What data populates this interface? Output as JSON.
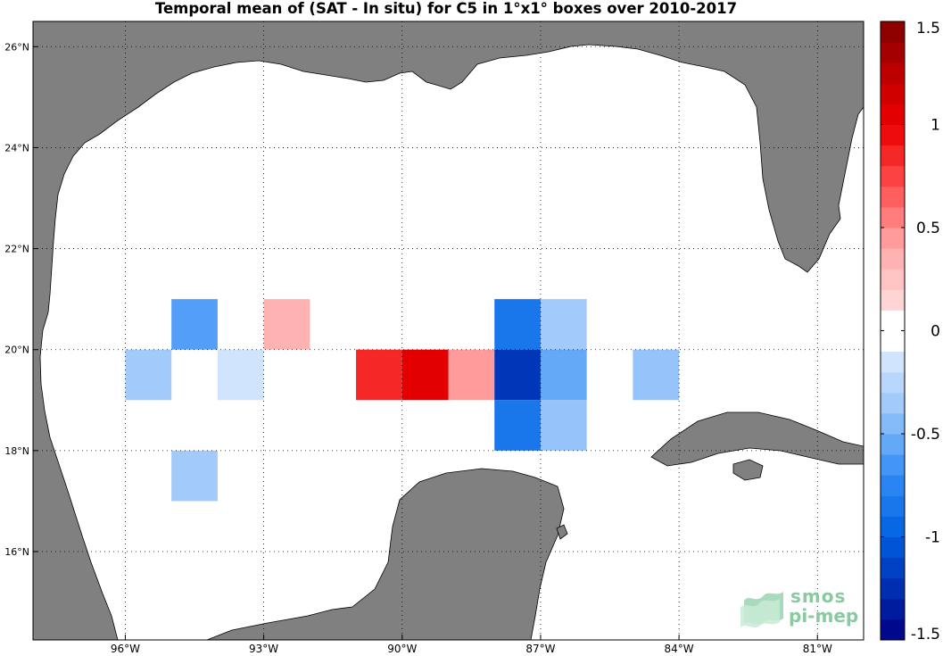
{
  "title": "Temporal mean of (SAT - In situ) for C5 in 1°x1° boxes over 2010-2017",
  "map": {
    "lon_range": [
      -98.0,
      -80.0
    ],
    "lat_range": [
      14.25,
      26.5
    ],
    "grid_lons": [
      -96,
      -93,
      -90,
      -87,
      -84,
      -81
    ],
    "grid_lats": [
      16,
      18,
      20,
      22,
      24,
      26
    ],
    "lon_labels": [
      "96°W",
      "93°W",
      "90°W",
      "87°W",
      "84°W",
      "81°W"
    ],
    "lat_labels": [
      "16°N",
      "18°N",
      "20°N",
      "22°N",
      "24°N",
      "26°N"
    ],
    "land_color": "#808080",
    "ocean_color": "#ffffff",
    "grid_style": "dotted"
  },
  "colorbar": {
    "min": -1.5,
    "max": 1.5,
    "tick_values": [
      -1.5,
      -1,
      -0.5,
      0,
      0.5,
      1,
      1.5
    ],
    "tick_labels": [
      "-1.5",
      "-1",
      "-0.5",
      "0",
      "0.5",
      "1",
      "1.5"
    ],
    "levels": 30,
    "neutral_band": [
      -0.1,
      0.1
    ]
  },
  "chart_data": {
    "type": "heatmap",
    "title": "Temporal mean of (SAT - In situ) for C5 in 1°x1° boxes over 2010-2017",
    "cell_size_deg": 1,
    "value_units": "SAT - In situ",
    "cells": [
      {
        "lon_min": -95,
        "lat_min": 20,
        "value": -0.6
      },
      {
        "lon_min": -96,
        "lat_min": 19,
        "value": -0.35
      },
      {
        "lon_min": -94,
        "lat_min": 19,
        "value": -0.15
      },
      {
        "lon_min": -93,
        "lat_min": 20,
        "value": 0.35
      },
      {
        "lon_min": -95,
        "lat_min": 17,
        "value": -0.35
      },
      {
        "lon_min": -91,
        "lat_min": 19,
        "value": 0.85
      },
      {
        "lon_min": -90,
        "lat_min": 19,
        "value": 1.05
      },
      {
        "lon_min": -89,
        "lat_min": 19,
        "value": 0.45
      },
      {
        "lon_min": -88,
        "lat_min": 20,
        "value": -0.85
      },
      {
        "lon_min": -88,
        "lat_min": 19,
        "value": -1.2
      },
      {
        "lon_min": -88,
        "lat_min": 18,
        "value": -0.85
      },
      {
        "lon_min": -87,
        "lat_min": 20,
        "value": -0.35
      },
      {
        "lon_min": -87,
        "lat_min": 19,
        "value": -0.55
      },
      {
        "lon_min": -87,
        "lat_min": 18,
        "value": -0.4
      },
      {
        "lon_min": -85,
        "lat_min": 19,
        "value": -0.4
      }
    ]
  },
  "logo": {
    "line1": "smos",
    "line2": "pi-mep"
  }
}
